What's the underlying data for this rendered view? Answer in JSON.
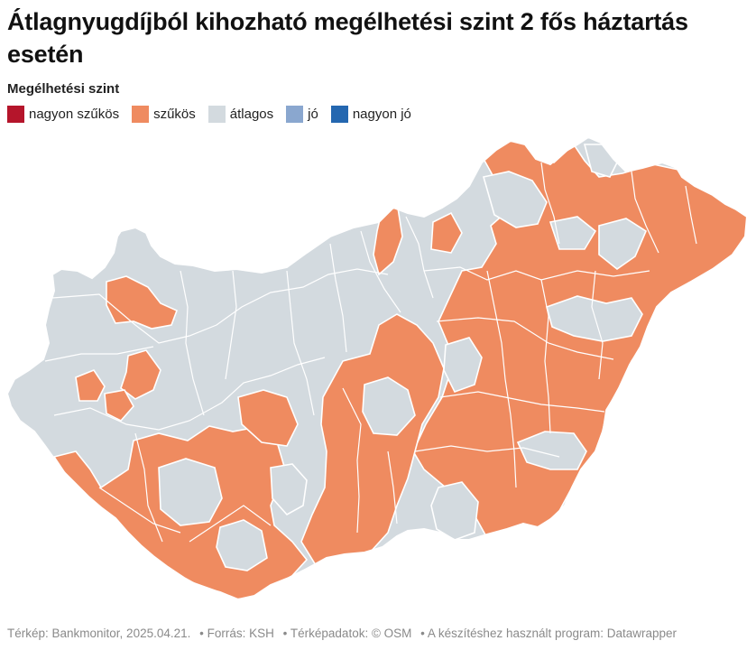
{
  "title": "Átlagnyugdíjból kihozható megélhetési szint 2 fős háztartás esetén",
  "legend": {
    "title": "Megélhetési szint",
    "items": [
      {
        "label": "nagyon szűkös",
        "color": "#b5152b"
      },
      {
        "label": "szűkös",
        "color": "#ef8b60"
      },
      {
        "label": "átlagos",
        "color": "#d3dadf"
      },
      {
        "label": "jó",
        "color": "#8aa7cf"
      },
      {
        "label": "nagyon jó",
        "color": "#2467b0"
      }
    ]
  },
  "map": {
    "region": "Magyarország",
    "colors": {
      "szukos": "#ef8b60",
      "atlagos": "#d3dadf",
      "border": "#ffffff"
    }
  },
  "footer": {
    "map_credit": "Térkép: Bankmonitor, 2025.04.21.",
    "source": "• Forrás: KSH",
    "map_data": "• Térképadatok: © OSM",
    "tool": "• A készítéshez használt program: Datawrapper"
  }
}
